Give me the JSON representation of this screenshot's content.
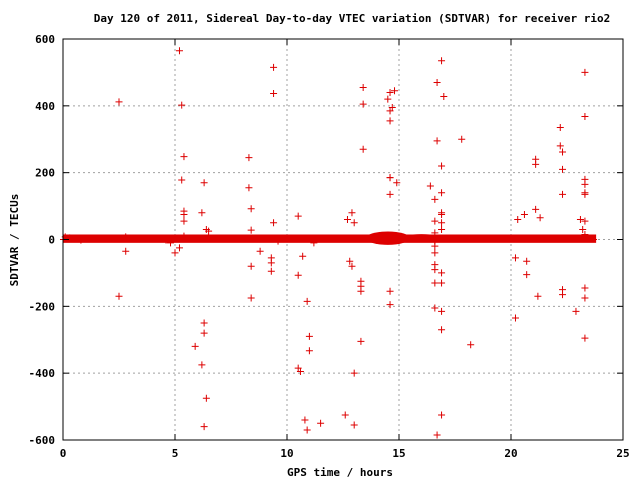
{
  "chart_data": {
    "type": "scatter",
    "title": "Day 120 of 2011, Sidereal Day-to-day VTEC variation (SDTVAR) for receiver rio2",
    "xlabel": "GPS time / hours",
    "ylabel": "SDTVAR / TECUs",
    "xlim": [
      0,
      25
    ],
    "ylim": [
      -600,
      600
    ],
    "xticks": [
      0,
      5,
      10,
      15,
      20,
      25
    ],
    "yticks": [
      -600,
      -400,
      -200,
      0,
      200,
      400,
      600
    ],
    "xtick_labels": [
      "0",
      "5",
      "10",
      "15",
      "20",
      "25"
    ],
    "ytick_labels": [
      "-600",
      "-400",
      "-200",
      "0",
      "200",
      "400",
      "600"
    ],
    "grid": true,
    "marker": "+",
    "marker_color": "#dd0000",
    "baseline_band": {
      "x_start": 0,
      "x_end": 23.8,
      "approx_y_range": [
        -10,
        15
      ]
    },
    "series": [
      {
        "name": "SDTVAR",
        "points": [
          [
            0.1,
            8
          ],
          [
            0.3,
            5
          ],
          [
            0.6,
            3
          ],
          [
            0.8,
            -2
          ],
          [
            2.5,
            412
          ],
          [
            2.5,
            -170
          ],
          [
            2.8,
            -35
          ],
          [
            2.8,
            8
          ],
          [
            4.6,
            -2
          ],
          [
            4.8,
            -10
          ],
          [
            5.0,
            -40
          ],
          [
            5.2,
            -25
          ],
          [
            5.2,
            565
          ],
          [
            5.3,
            402
          ],
          [
            5.3,
            178
          ],
          [
            5.4,
            248
          ],
          [
            5.4,
            85
          ],
          [
            5.4,
            75
          ],
          [
            5.4,
            55
          ],
          [
            5.4,
            10
          ],
          [
            5.9,
            -320
          ],
          [
            6.2,
            80
          ],
          [
            6.2,
            -375
          ],
          [
            6.3,
            -560
          ],
          [
            6.3,
            170
          ],
          [
            6.3,
            -250
          ],
          [
            6.3,
            -280
          ],
          [
            6.4,
            -475
          ],
          [
            6.4,
            30
          ],
          [
            6.5,
            25
          ],
          [
            8.3,
            245
          ],
          [
            8.3,
            155
          ],
          [
            8.4,
            92
          ],
          [
            8.4,
            28
          ],
          [
            8.4,
            -80
          ],
          [
            8.4,
            -175
          ],
          [
            8.8,
            -35
          ],
          [
            9.3,
            -55
          ],
          [
            9.3,
            -70
          ],
          [
            9.3,
            -95
          ],
          [
            9.4,
            515
          ],
          [
            9.4,
            437
          ],
          [
            9.4,
            50
          ],
          [
            9.6,
            -5
          ],
          [
            10.5,
            70
          ],
          [
            10.5,
            -107
          ],
          [
            10.5,
            -385
          ],
          [
            10.6,
            -395
          ],
          [
            10.7,
            -50
          ],
          [
            10.8,
            -540
          ],
          [
            10.9,
            -570
          ],
          [
            10.9,
            -185
          ],
          [
            11.0,
            -290
          ],
          [
            11.0,
            -333
          ],
          [
            11.2,
            -10
          ],
          [
            11.5,
            -550
          ],
          [
            12.6,
            -525
          ],
          [
            12.7,
            60
          ],
          [
            12.8,
            -65
          ],
          [
            12.9,
            -80
          ],
          [
            12.9,
            80
          ],
          [
            13.0,
            -400
          ],
          [
            13.0,
            -555
          ],
          [
            13.0,
            50
          ],
          [
            13.3,
            -305
          ],
          [
            13.3,
            -125
          ],
          [
            13.3,
            -155
          ],
          [
            13.3,
            -140
          ],
          [
            13.4,
            455
          ],
          [
            13.4,
            405
          ],
          [
            13.4,
            270
          ],
          [
            14.5,
            420
          ],
          [
            14.6,
            440
          ],
          [
            14.6,
            355
          ],
          [
            14.6,
            385
          ],
          [
            14.6,
            185
          ],
          [
            14.6,
            185
          ],
          [
            14.6,
            135
          ],
          [
            14.6,
            -155
          ],
          [
            14.6,
            -195
          ],
          [
            14.7,
            395
          ],
          [
            14.8,
            445
          ],
          [
            14.9,
            170
          ],
          [
            16.4,
            160
          ],
          [
            16.6,
            -205
          ],
          [
            16.7,
            470
          ],
          [
            16.7,
            295
          ],
          [
            16.6,
            120
          ],
          [
            16.6,
            55
          ],
          [
            16.6,
            20
          ],
          [
            16.6,
            -5
          ],
          [
            16.6,
            -20
          ],
          [
            16.6,
            -40
          ],
          [
            16.6,
            -75
          ],
          [
            16.6,
            -90
          ],
          [
            16.6,
            -130
          ],
          [
            16.9,
            535
          ],
          [
            17.0,
            428
          ],
          [
            16.9,
            220
          ],
          [
            16.9,
            140
          ],
          [
            16.9,
            80
          ],
          [
            16.9,
            75
          ],
          [
            16.9,
            50
          ],
          [
            16.9,
            30
          ],
          [
            16.9,
            -100
          ],
          [
            16.9,
            -130
          ],
          [
            16.9,
            -215
          ],
          [
            16.9,
            -270
          ],
          [
            16.9,
            -525
          ],
          [
            16.7,
            -585
          ],
          [
            17.8,
            300
          ],
          [
            18.2,
            -315
          ],
          [
            20.2,
            -235
          ],
          [
            20.2,
            -55
          ],
          [
            20.3,
            60
          ],
          [
            20.6,
            75
          ],
          [
            20.7,
            -65
          ],
          [
            20.7,
            -105
          ],
          [
            21.1,
            240
          ],
          [
            21.1,
            225
          ],
          [
            21.1,
            90
          ],
          [
            21.2,
            -170
          ],
          [
            21.3,
            65
          ],
          [
            22.2,
            335
          ],
          [
            22.2,
            280
          ],
          [
            22.3,
            262
          ],
          [
            22.3,
            210
          ],
          [
            22.3,
            135
          ],
          [
            22.3,
            -150
          ],
          [
            22.3,
            -165
          ],
          [
            22.9,
            -215
          ],
          [
            23.1,
            60
          ],
          [
            23.2,
            30
          ],
          [
            23.3,
            500
          ],
          [
            23.3,
            368
          ],
          [
            23.3,
            180
          ],
          [
            23.3,
            165
          ],
          [
            23.3,
            140
          ],
          [
            23.3,
            135
          ],
          [
            23.3,
            55
          ],
          [
            23.3,
            15
          ],
          [
            23.3,
            -145
          ],
          [
            23.3,
            -175
          ],
          [
            23.3,
            -295
          ]
        ]
      }
    ]
  }
}
